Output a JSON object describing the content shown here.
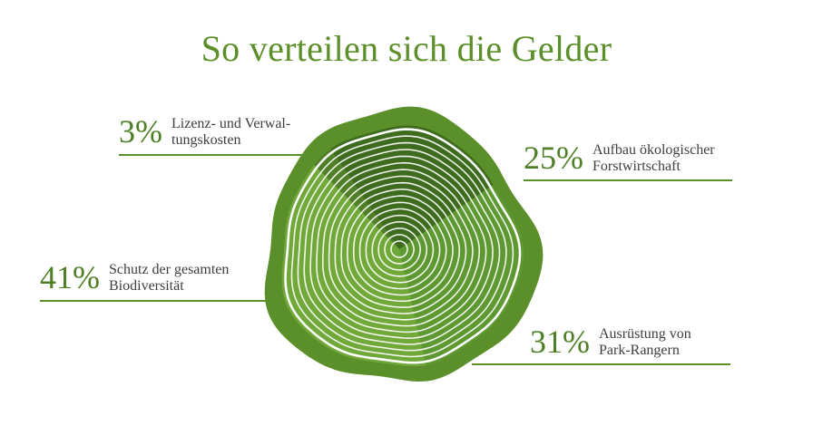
{
  "title": "So verteilen sich die Gelder",
  "colors": {
    "title": "#5b8f2a",
    "bark": "#5b8f2a",
    "slice_verwaltung": "#4f7f26",
    "slice_forst": "#3d6c1e",
    "slice_ranger": "#5e9830",
    "slice_bio": "#71a83a",
    "rings": "#ffffff",
    "leader_lines": "#5b8f2a"
  },
  "chart_data": {
    "type": "pie",
    "title": "So verteilen sich die Gelder",
    "unit": "%",
    "slices": [
      {
        "label": "Lizenz- und Verwal-\ntungskosten",
        "value": 3,
        "pct_text": "3%",
        "color_key": "slice_verwaltung"
      },
      {
        "label": "Aufbau ökologischer\nForstwirtschaft",
        "value": 25,
        "pct_text": "25%",
        "color_key": "slice_forst"
      },
      {
        "label": "Ausrüstung von\nPark-Rangern",
        "value": 31,
        "pct_text": "31%",
        "color_key": "slice_ranger"
      },
      {
        "label": "Schutz der gesamten\nBiodiversität",
        "value": 41,
        "pct_text": "41%",
        "color_key": "slice_bio"
      }
    ],
    "legend": "none",
    "style": "tree-ring pie with labeled callouts"
  }
}
